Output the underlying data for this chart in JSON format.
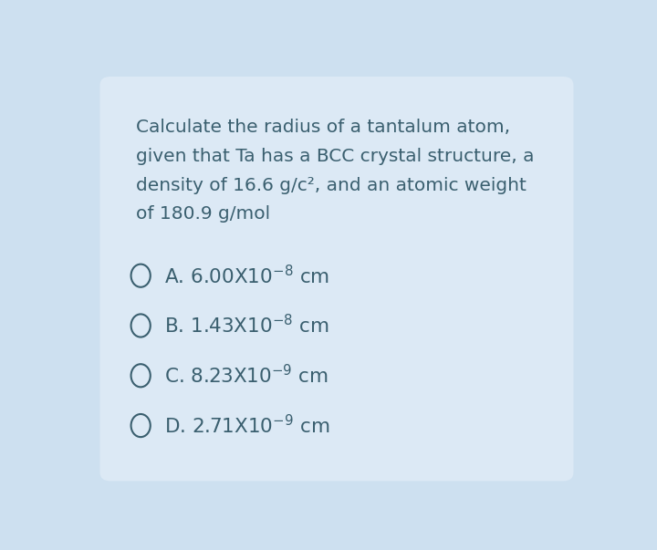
{
  "card_color": "#dce9f5",
  "outer_bg": "#cde0f0",
  "question_lines": [
    "Calculate the radius of a tantalum atom,",
    "given that Ta has a BCC crystal structure, a",
    "density of 16.6 g/c², and an atomic weight",
    "of 180.9 g/mol"
  ],
  "options": [
    {
      "label": "A. ",
      "main": "6.00X10",
      "exp": "-8",
      "unit": " cm"
    },
    {
      "label": "B. ",
      "main": "1.43X10",
      "exp": "-8",
      "unit": " cm"
    },
    {
      "label": "C. ",
      "main": "8.23X10",
      "exp": "-9",
      "unit": " cm"
    },
    {
      "label": "D. ",
      "main": "2.71X10",
      "exp": "-9",
      "unit": " cm"
    }
  ],
  "question_fontsize": 14.5,
  "option_fontsize": 15.5,
  "text_color": "#3a5f6f",
  "circle_color": "#3a5f6f",
  "fig_width": 7.2,
  "fig_height": 6.03
}
